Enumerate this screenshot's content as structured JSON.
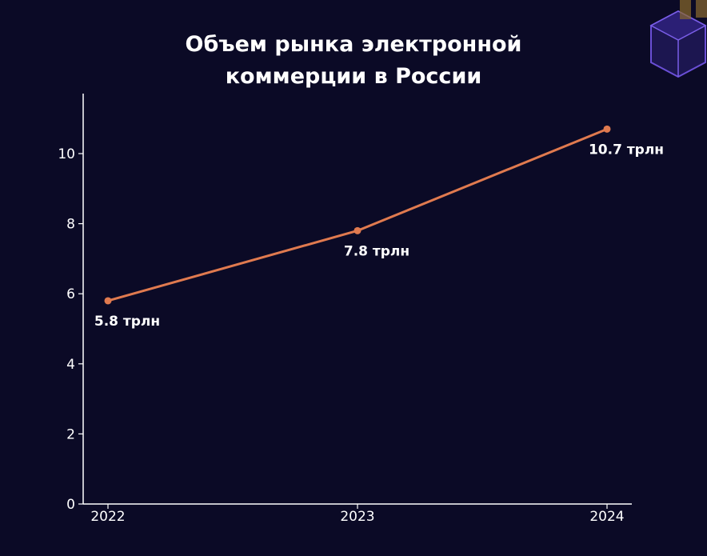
{
  "colors": {
    "background": "#0b0a26",
    "line": "#e07a4f",
    "axis": "#ffffff",
    "text": "#ffffff",
    "decoration": "#6a4fd6"
  },
  "chart_data": {
    "type": "line",
    "title_lines": [
      "Объем рынка электронной",
      "коммерции в России"
    ],
    "xlabel": "",
    "ylabel": "",
    "categories": [
      "2022",
      "2023",
      "2024"
    ],
    "values": [
      5.8,
      7.8,
      10.7
    ],
    "data_labels": [
      "5.8 трлн",
      "7.8 трлн",
      "10.7 трлн"
    ],
    "ylim": [
      0,
      11.7
    ],
    "yticks": [
      0,
      2,
      4,
      6,
      8,
      10
    ],
    "grid": false,
    "legend": "none"
  }
}
